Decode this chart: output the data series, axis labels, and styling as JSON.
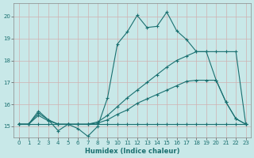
{
  "bg_color": "#c8e8e8",
  "grid_color": "#e0f0f0",
  "line_color": "#1a7070",
  "xlabel": "Humidex (Indice chaleur)",
  "xlim": [
    -0.5,
    23.5
  ],
  "ylim": [
    14.5,
    20.6
  ],
  "yticks": [
    15,
    16,
    17,
    18,
    19,
    20
  ],
  "xticks": [
    0,
    1,
    2,
    3,
    4,
    5,
    6,
    7,
    8,
    9,
    10,
    11,
    12,
    13,
    14,
    15,
    16,
    17,
    18,
    19,
    20,
    21,
    22,
    23
  ],
  "series": [
    {
      "x": [
        0,
        1,
        2,
        3,
        4,
        5,
        6,
        7,
        8,
        9,
        10,
        11,
        12,
        13,
        14,
        15,
        16,
        17,
        18,
        19,
        20,
        21,
        22,
        23
      ],
      "y": [
        15.1,
        15.1,
        15.7,
        15.3,
        14.8,
        15.1,
        14.9,
        14.55,
        15.0,
        16.3,
        18.75,
        19.3,
        20.05,
        19.5,
        19.55,
        20.2,
        19.35,
        18.95,
        18.4,
        18.4,
        17.1,
        16.1,
        15.35,
        15.1
      ]
    },
    {
      "x": [
        0,
        1,
        2,
        3,
        4,
        5,
        6,
        7,
        8,
        9,
        10,
        11,
        12,
        13,
        14,
        15,
        16,
        17,
        18,
        19,
        20,
        21,
        22,
        23
      ],
      "y": [
        15.1,
        15.1,
        15.6,
        15.3,
        15.1,
        15.1,
        15.1,
        15.1,
        15.2,
        15.5,
        15.9,
        16.3,
        16.65,
        17.0,
        17.35,
        17.7,
        18.0,
        18.2,
        18.4,
        18.4,
        18.4,
        18.4,
        18.4,
        15.1
      ]
    },
    {
      "x": [
        0,
        1,
        2,
        3,
        4,
        5,
        6,
        7,
        8,
        9,
        10,
        11,
        12,
        13,
        14,
        15,
        16,
        17,
        18,
        19,
        20,
        21,
        22,
        23
      ],
      "y": [
        15.1,
        15.1,
        15.5,
        15.25,
        15.1,
        15.1,
        15.1,
        15.1,
        15.15,
        15.3,
        15.55,
        15.75,
        16.05,
        16.25,
        16.45,
        16.65,
        16.85,
        17.05,
        17.1,
        17.1,
        17.1,
        16.1,
        15.35,
        15.1
      ]
    },
    {
      "x": [
        0,
        1,
        2,
        3,
        4,
        5,
        6,
        7,
        8,
        9,
        10,
        11,
        12,
        13,
        14,
        15,
        16,
        17,
        18,
        19,
        20,
        21,
        22,
        23
      ],
      "y": [
        15.1,
        15.1,
        15.1,
        15.1,
        15.1,
        15.1,
        15.1,
        15.1,
        15.1,
        15.1,
        15.1,
        15.1,
        15.1,
        15.1,
        15.1,
        15.1,
        15.1,
        15.1,
        15.1,
        15.1,
        15.1,
        15.1,
        15.1,
        15.1
      ]
    }
  ]
}
